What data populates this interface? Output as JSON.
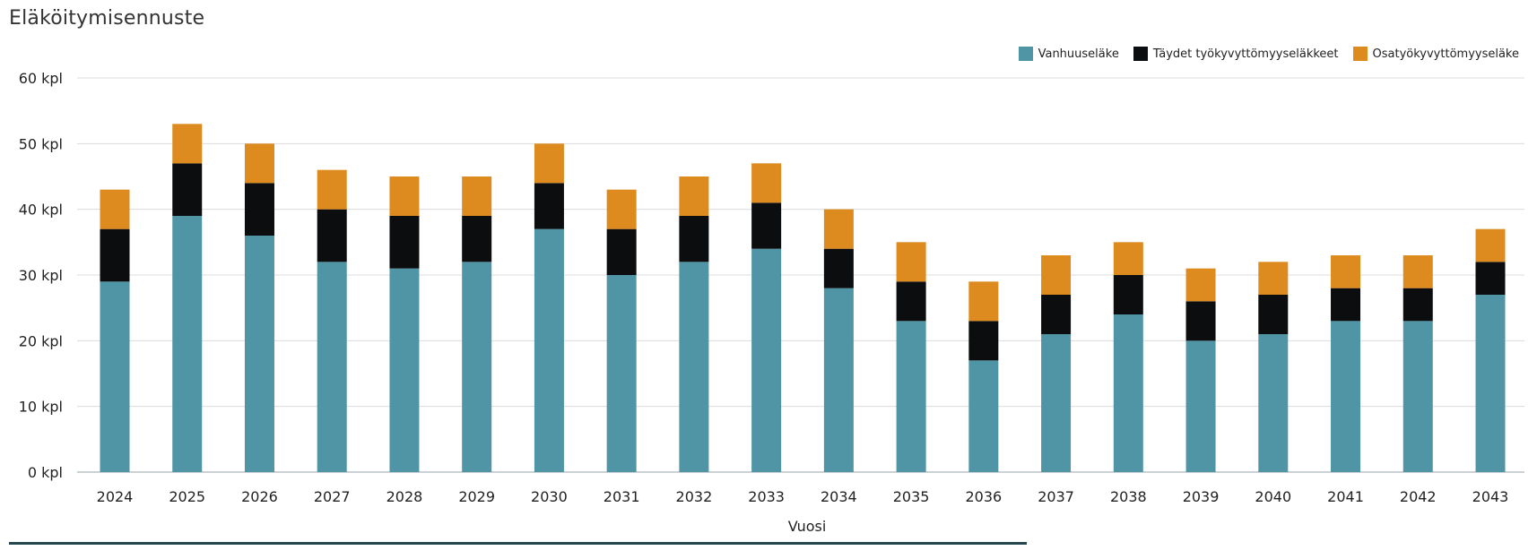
{
  "page": {
    "title": "Eläköitymisennuste"
  },
  "chart_data": {
    "type": "bar",
    "stacked": true,
    "title": "Eläköitymisennuste",
    "xlabel": "Vuosi",
    "ylabel": "",
    "ylim": [
      0,
      60
    ],
    "yticks": [
      0,
      10,
      20,
      30,
      40,
      50,
      60
    ],
    "ytick_unit": "kpl",
    "ytick_labels": [
      "0 kpl",
      "10 kpl",
      "20 kpl",
      "30 kpl",
      "40 kpl",
      "50 kpl",
      "60 kpl"
    ],
    "grid": true,
    "legend_position": "top-right",
    "categories": [
      "2024",
      "2025",
      "2026",
      "2027",
      "2028",
      "2029",
      "2030",
      "2031",
      "2032",
      "2033",
      "2034",
      "2035",
      "2036",
      "2037",
      "2038",
      "2039",
      "2040",
      "2041",
      "2042",
      "2043"
    ],
    "series": [
      {
        "name": "Vanhuuseläke",
        "color": "#4f95a5",
        "values": [
          29,
          39,
          36,
          32,
          31,
          32,
          37,
          30,
          32,
          34,
          28,
          23,
          17,
          21,
          24,
          20,
          21,
          23,
          23,
          27
        ]
      },
      {
        "name": "Täydet työkyvyttömyyseläkkeet",
        "color": "#0b0d0e",
        "values": [
          8,
          8,
          8,
          8,
          8,
          7,
          7,
          7,
          7,
          7,
          6,
          6,
          6,
          6,
          6,
          6,
          6,
          5,
          5,
          5
        ]
      },
      {
        "name": "Osatyökyvyttömyyseläke",
        "color": "#dd8a1f",
        "values": [
          6,
          6,
          6,
          6,
          6,
          6,
          6,
          6,
          6,
          6,
          6,
          6,
          6,
          6,
          5,
          5,
          5,
          5,
          5,
          5
        ]
      }
    ]
  }
}
